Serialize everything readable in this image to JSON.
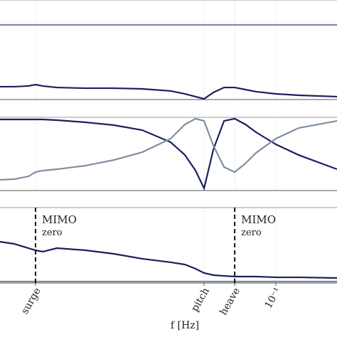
{
  "chart_data": [
    {
      "type": "line",
      "xscale": "log",
      "xlim": [
        0.0046,
        0.198
      ],
      "ylim": [
        0,
        1
      ],
      "x": [
        0.0046,
        0.00539,
        0.00632,
        0.00684,
        0.00741,
        0.00868,
        0.01193,
        0.01639,
        0.02251,
        0.03093,
        0.03626,
        0.04083,
        0.0449,
        0.04982,
        0.05612,
        0.0632,
        0.07121,
        0.08019,
        0.1,
        0.1291,
        0.198
      ],
      "series": [
        {
          "color": "#7f8fa0",
          "values": [
            0.75,
            0.75,
            0.75,
            0.75,
            0.75,
            0.75,
            0.75,
            0.75,
            0.75,
            0.75,
            0.75,
            0.75,
            0.75,
            0.75,
            0.75,
            0.75,
            0.75,
            0.75,
            0.75,
            0.75,
            0.75
          ]
        },
        {
          "color": "#1b1f5f",
          "values": [
            0.129,
            0.129,
            0.136,
            0.15,
            0.136,
            0.121,
            0.114,
            0.114,
            0.107,
            0.086,
            0.057,
            0.029,
            0.007,
            0.071,
            0.121,
            0.121,
            0.1,
            0.079,
            0.057,
            0.043,
            0.029
          ]
        }
      ]
    },
    {
      "type": "line",
      "xscale": "log",
      "xlim": [
        0.0046,
        0.198
      ],
      "ylim": [
        0,
        1
      ],
      "x": [
        0.0046,
        0.00539,
        0.00632,
        0.00684,
        0.00741,
        0.00868,
        0.01193,
        0.01639,
        0.02251,
        0.03093,
        0.03626,
        0.04083,
        0.0449,
        0.04982,
        0.05612,
        0.0632,
        0.07121,
        0.08019,
        0.1,
        0.1291,
        0.198
      ],
      "series": [
        {
          "color": "#1b1f5f",
          "values": [
            0.971,
            0.971,
            0.971,
            0.971,
            0.971,
            0.961,
            0.932,
            0.893,
            0.825,
            0.66,
            0.485,
            0.272,
            0.029,
            0.563,
            0.951,
            0.981,
            0.903,
            0.796,
            0.631,
            0.485,
            0.291
          ]
        },
        {
          "color": "#7f8fa0",
          "values": [
            0.146,
            0.155,
            0.194,
            0.252,
            0.272,
            0.291,
            0.34,
            0.417,
            0.524,
            0.709,
            0.903,
            0.981,
            0.951,
            0.612,
            0.32,
            0.252,
            0.369,
            0.515,
            0.709,
            0.854,
            0.951
          ]
        }
      ]
    },
    {
      "type": "line",
      "xscale": "log",
      "xlim": [
        0.0046,
        0.198
      ],
      "ylim": [
        0,
        1
      ],
      "xlabel": "f [Hz]",
      "xticks": [
        {
          "value": 0.00684,
          "label": "surge"
        },
        {
          "value": 0.0449,
          "label": "pitch"
        },
        {
          "value": 0.0632,
          "label": "heave"
        },
        {
          "value": 0.1,
          "label": "10⁻¹"
        }
      ],
      "x": [
        0.0046,
        0.00539,
        0.00632,
        0.00684,
        0.00741,
        0.00868,
        0.01193,
        0.01639,
        0.02251,
        0.03093,
        0.03626,
        0.04083,
        0.0449,
        0.04982,
        0.05612,
        0.0632,
        0.07121,
        0.08019,
        0.1,
        0.1291,
        0.198
      ],
      "series": [
        {
          "color": "#7f8fa0",
          "values": [
            0.019,
            0.019,
            0.019,
            0.019,
            0.019,
            0.019,
            0.019,
            0.019,
            0.019,
            0.019,
            0.019,
            0.019,
            0.019,
            0.019,
            0.019,
            0.019,
            0.019,
            0.019,
            0.019,
            0.019,
            0.019
          ]
        },
        {
          "color": "#1b1f5f",
          "values": [
            0.547,
            0.519,
            0.462,
            0.434,
            0.415,
            0.462,
            0.434,
            0.387,
            0.321,
            0.274,
            0.245,
            0.189,
            0.132,
            0.104,
            0.094,
            0.085,
            0.085,
            0.085,
            0.075,
            0.075,
            0.066
          ]
        }
      ],
      "annotations": [
        {
          "x": 0.00684,
          "lines": [
            "MIMO",
            "zero"
          ]
        },
        {
          "x": 0.0632,
          "lines": [
            "MIMO",
            "zero"
          ]
        }
      ]
    }
  ]
}
